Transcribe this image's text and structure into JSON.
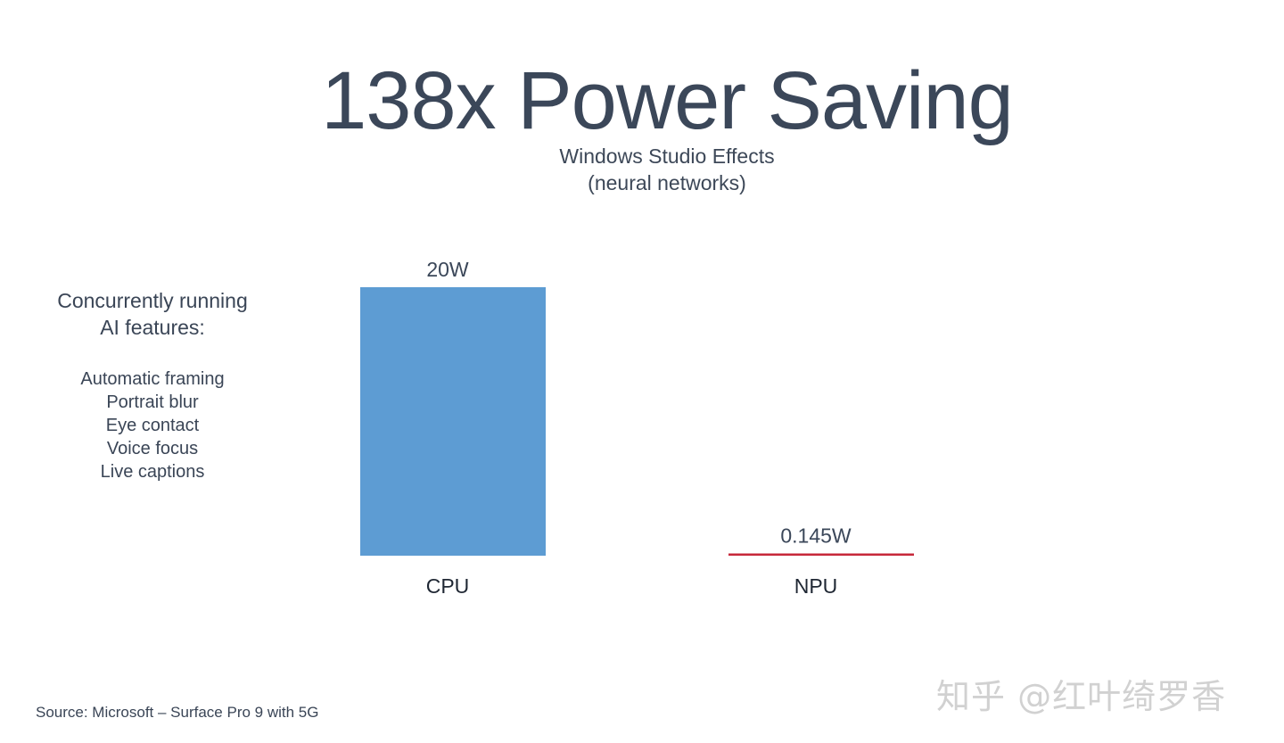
{
  "title": "138x Power Saving",
  "subtitle": [
    "Windows Studio Effects",
    "(neural networks)"
  ],
  "side_panel": {
    "heading": [
      "Concurrently running",
      "AI features:"
    ],
    "features": [
      "Automatic framing",
      "Portrait blur",
      "Eye contact",
      "Voice focus",
      "Live captions"
    ]
  },
  "source": "Source: Microsoft – Surface Pro 9 with 5G",
  "watermark": "知乎 @红叶绮罗香",
  "chart_data": {
    "type": "bar",
    "title": "138x Power Saving",
    "subtitle": "Windows Studio Effects (neural networks)",
    "categories": [
      "CPU",
      "NPU"
    ],
    "values": [
      20,
      0.145
    ],
    "data_labels": [
      "20W",
      "0.145W"
    ],
    "unit": "W",
    "colors": [
      "#5d9cd3",
      "#c7283a"
    ],
    "ylim": [
      0,
      20
    ],
    "grid": false,
    "legend": "none",
    "xlabel": "",
    "ylabel": ""
  },
  "colors": {
    "text": "#3b4759",
    "cpu_bar": "#5d9cd3",
    "npu_bar": "#c7283a",
    "watermark": "#c9c9c9"
  }
}
